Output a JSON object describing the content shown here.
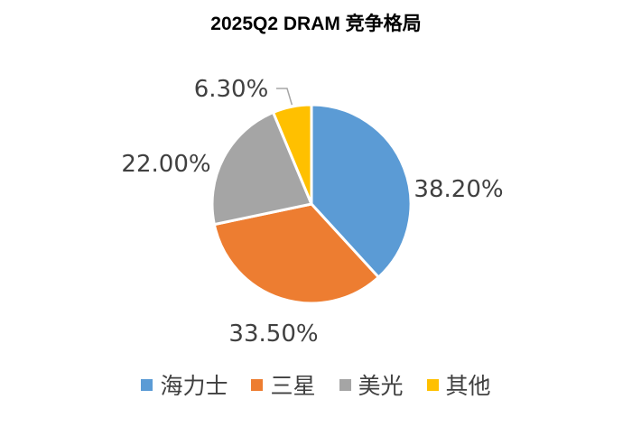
{
  "chart_data": {
    "type": "pie",
    "title": "2025Q2 DRAM 竞争格局",
    "categories": [
      "海力士",
      "三星",
      "美光",
      "其他"
    ],
    "values": [
      38.2,
      33.5,
      22.0,
      6.3
    ],
    "labels": [
      "38.20%",
      "33.50%",
      "22.00%",
      "6.30%"
    ],
    "colors": [
      "#5B9BD5",
      "#ED7D31",
      "#A5A5A5",
      "#FFC000"
    ],
    "legend_position": "bottom"
  }
}
